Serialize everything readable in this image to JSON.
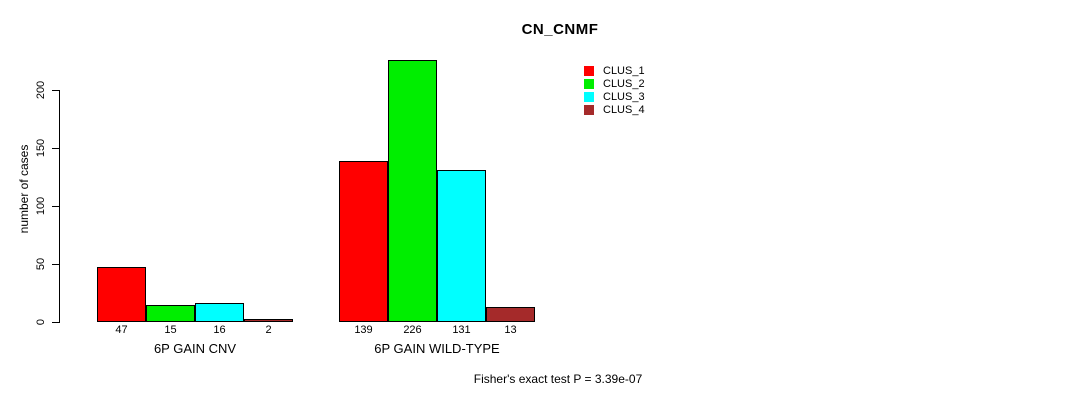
{
  "title": "CN_CNMF",
  "footer": "Fisher's exact test P = 3.39e-07",
  "chart_data": {
    "type": "bar",
    "title": "CN_CNMF",
    "xlabel": "",
    "ylabel": "number of cases",
    "ylim": [
      0,
      230
    ],
    "yticks": [
      0,
      50,
      100,
      150,
      200
    ],
    "grid": false,
    "legend_position": "top-right",
    "categories": [
      "6P GAIN CNV",
      "6P GAIN WILD-TYPE"
    ],
    "series": [
      {
        "name": "CLUS_1",
        "color": "#FF0000",
        "values": [
          47,
          139
        ]
      },
      {
        "name": "CLUS_2",
        "color": "#00EE00",
        "values": [
          15,
          226
        ]
      },
      {
        "name": "CLUS_3",
        "color": "#00FFFF",
        "values": [
          16,
          131
        ]
      },
      {
        "name": "CLUS_4",
        "color": "#A52A2A",
        "values": [
          2,
          13
        ]
      }
    ],
    "bar_value_labels": [
      [
        47,
        15,
        16,
        2
      ],
      [
        139,
        226,
        131,
        13
      ]
    ],
    "annotation": "Fisher's exact test P = 3.39e-07"
  }
}
